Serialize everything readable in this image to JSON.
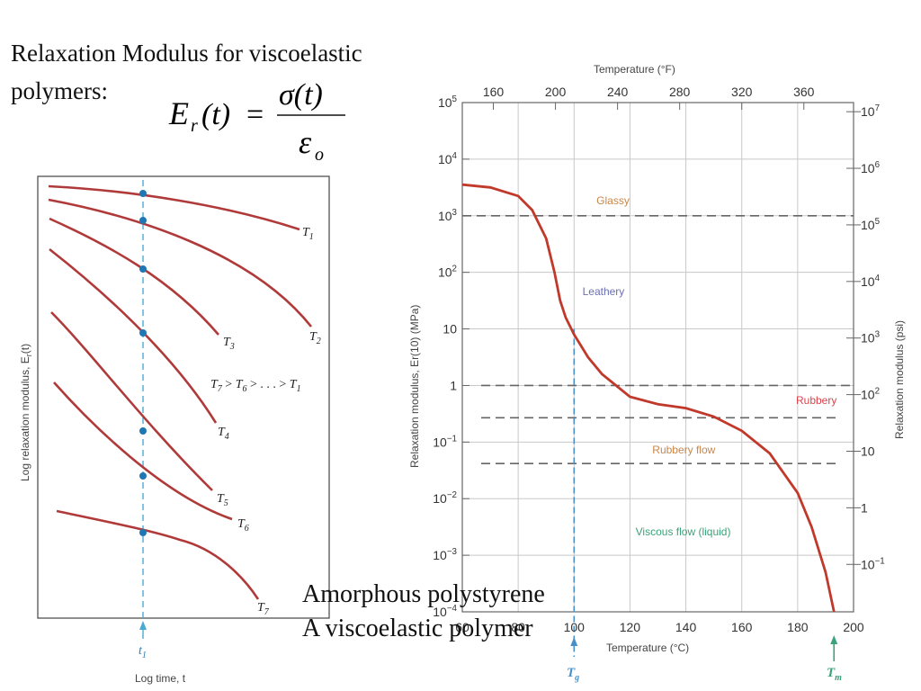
{
  "slide": {
    "title": "Relaxation Modulus for viscoelastic polymers:",
    "equation": {
      "lhs": "E",
      "lhs_sub": "r",
      "lhs_arg": "(t)",
      "equals": "=",
      "numerator": "σ(t)",
      "denominator": "ε",
      "denominator_sub": "o"
    },
    "caption_line1": "Amorphous polystyrene",
    "caption_line2": "A viscoelastic polymer"
  },
  "left_figure": {
    "ylabel": "Log relaxation modulus, E",
    "ylabel_sub": "r",
    "ylabel_tail": "(t)",
    "xlabel": "Log time, t",
    "marker": "t",
    "marker_sub": "1",
    "order_label": "T7 > T6 > . . . > T1",
    "curves": [
      "T1",
      "T2",
      "T3",
      "T4",
      "T5",
      "T6",
      "T7"
    ],
    "colors": {
      "curve": "#b03a3a",
      "marker": "#4aaad4",
      "dot": "#1f77b4"
    }
  },
  "chart_data": {
    "type": "line",
    "title": "",
    "xlabel": "Temperature (°C)",
    "x2label": "Temperature (°F)",
    "ylabel": "Relaxation modulus, Er(10) (MPa)",
    "y2label": "Relaxation modulus (psi)",
    "xlim": [
      60,
      200
    ],
    "ylim_log10": [
      -4,
      5
    ],
    "xticks": [
      "60",
      "80",
      "100",
      "120",
      "140",
      "160",
      "180",
      "200"
    ],
    "x2ticks": [
      "160",
      "200",
      "240",
      "280",
      "320",
      "360"
    ],
    "yticks": [
      "10^5",
      "10^4",
      "10^3",
      "10^2",
      "10",
      "1",
      "10^-1",
      "10^-2",
      "10^-3",
      "10^-4"
    ],
    "y2ticks": [
      "10^7",
      "10^6",
      "10^5",
      "10^4",
      "10^3",
      "10^2",
      "10",
      "1",
      "10^-1"
    ],
    "regions": [
      "Glassy",
      "Leathery",
      "Rubbery",
      "Rubbery flow",
      "Viscous flow (liquid)"
    ],
    "markers": {
      "Tg": 100,
      "Tm": 193
    },
    "series": [
      {
        "x": [
          60,
          70,
          80,
          85,
          90,
          93,
          95,
          97,
          100,
          105,
          110,
          120,
          130,
          140,
          150,
          160,
          170,
          180,
          185,
          190,
          193
        ],
        "log10_y": [
          3.55,
          3.5,
          3.35,
          3.1,
          2.6,
          2.0,
          1.5,
          1.2,
          0.9,
          0.5,
          0.2,
          -0.2,
          -0.33,
          -0.4,
          -0.55,
          -0.8,
          -1.2,
          -1.9,
          -2.5,
          -3.3,
          -4.0
        ]
      }
    ],
    "colors": {
      "curve": "#c0392b",
      "Tg": "#4a90c8",
      "Tm": "#3aa37a",
      "Glassy": "#c9864a",
      "Leathery": "#6b6fb5",
      "Rubbery": "#d9444e",
      "Rubbery flow": "#c9864a",
      "Viscous flow (liquid)": "#3aa37a"
    }
  }
}
